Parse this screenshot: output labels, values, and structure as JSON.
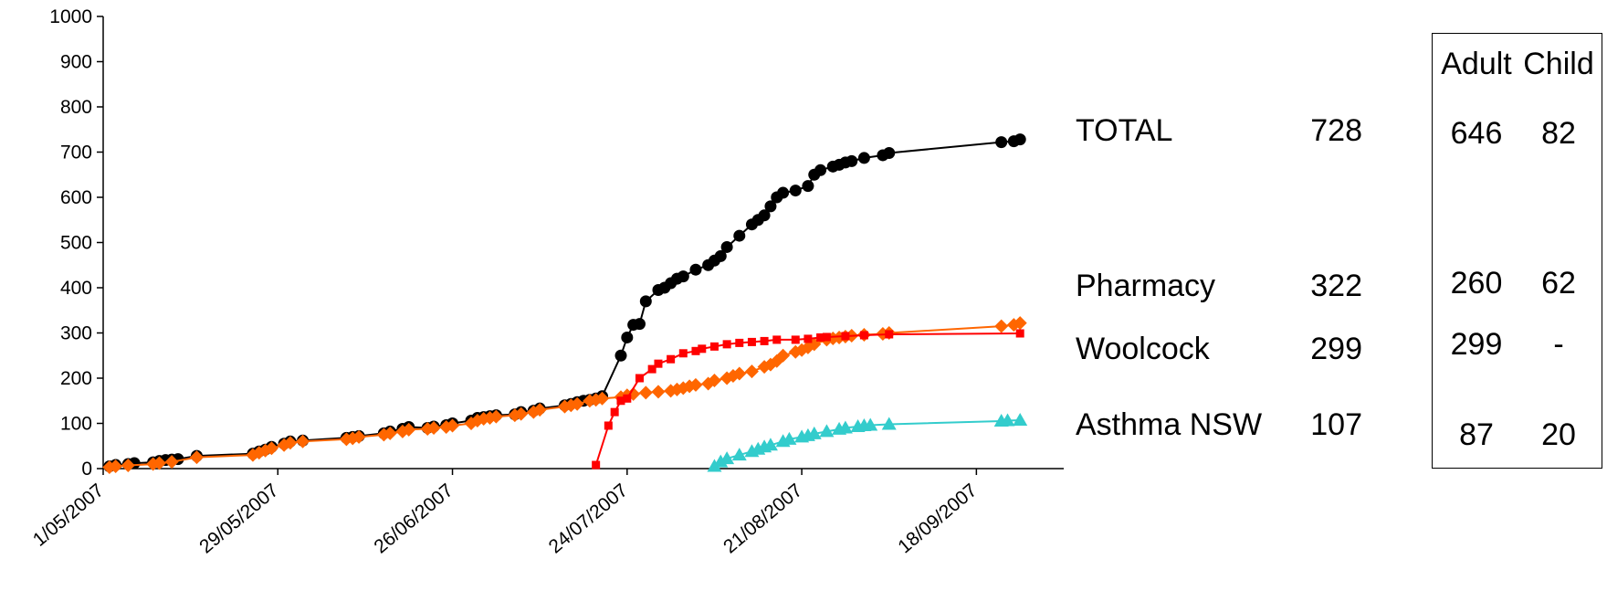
{
  "chart_data": {
    "type": "line",
    "x_type": "date",
    "ylim": [
      0,
      1000
    ],
    "yticks": [
      0,
      100,
      200,
      300,
      400,
      500,
      600,
      700,
      800,
      900,
      1000
    ],
    "xlim": [
      "2007-05-01",
      "2007-10-02"
    ],
    "xticks": [
      {
        "date": "2007-05-01",
        "label": "1/05/2007"
      },
      {
        "date": "2007-05-29",
        "label": "29/05/2007"
      },
      {
        "date": "2007-06-26",
        "label": "26/06/2007"
      },
      {
        "date": "2007-07-24",
        "label": "24/07/2007"
      },
      {
        "date": "2007-08-21",
        "label": "21/08/2007"
      },
      {
        "date": "2007-09-18",
        "label": "18/09/2007"
      }
    ],
    "series": [
      {
        "name": "TOTAL",
        "color": "#000000",
        "marker": "circle",
        "points": [
          [
            "2007-05-02",
            5
          ],
          [
            "2007-05-03",
            8
          ],
          [
            "2007-05-05",
            10
          ],
          [
            "2007-05-06",
            12
          ],
          [
            "2007-05-09",
            14
          ],
          [
            "2007-05-10",
            17
          ],
          [
            "2007-05-11",
            19
          ],
          [
            "2007-05-12",
            20
          ],
          [
            "2007-05-13",
            21
          ],
          [
            "2007-05-16",
            28
          ],
          [
            "2007-05-25",
            33
          ],
          [
            "2007-05-26",
            38
          ],
          [
            "2007-05-27",
            42
          ],
          [
            "2007-05-28",
            48
          ],
          [
            "2007-05-30",
            55
          ],
          [
            "2007-05-31",
            60
          ],
          [
            "2007-06-02",
            62
          ],
          [
            "2007-06-09",
            68
          ],
          [
            "2007-06-10",
            70
          ],
          [
            "2007-06-11",
            72
          ],
          [
            "2007-06-15",
            78
          ],
          [
            "2007-06-16",
            82
          ],
          [
            "2007-06-18",
            88
          ],
          [
            "2007-06-19",
            92
          ],
          [
            "2007-06-22",
            90
          ],
          [
            "2007-06-23",
            93
          ],
          [
            "2007-06-25",
            96
          ],
          [
            "2007-06-26",
            100
          ],
          [
            "2007-06-29",
            106
          ],
          [
            "2007-06-30",
            112
          ],
          [
            "2007-07-01",
            114
          ],
          [
            "2007-07-02",
            116
          ],
          [
            "2007-07-03",
            118
          ],
          [
            "2007-07-06",
            120
          ],
          [
            "2007-07-07",
            125
          ],
          [
            "2007-07-09",
            128
          ],
          [
            "2007-07-10",
            133
          ],
          [
            "2007-07-14",
            140
          ],
          [
            "2007-07-15",
            143
          ],
          [
            "2007-07-16",
            147
          ],
          [
            "2007-07-17",
            150
          ],
          [
            "2007-07-18",
            152
          ],
          [
            "2007-07-19",
            155
          ],
          [
            "2007-07-20",
            160
          ],
          [
            "2007-07-23",
            250
          ],
          [
            "2007-07-24",
            290
          ],
          [
            "2007-07-25",
            318
          ],
          [
            "2007-07-26",
            320
          ],
          [
            "2007-07-27",
            370
          ],
          [
            "2007-07-29",
            395
          ],
          [
            "2007-07-30",
            400
          ],
          [
            "2007-07-31",
            410
          ],
          [
            "2007-08-01",
            420
          ],
          [
            "2007-08-02",
            425
          ],
          [
            "2007-08-04",
            440
          ],
          [
            "2007-08-06",
            450
          ],
          [
            "2007-08-07",
            460
          ],
          [
            "2007-08-08",
            470
          ],
          [
            "2007-08-09",
            490
          ],
          [
            "2007-08-11",
            515
          ],
          [
            "2007-08-13",
            540
          ],
          [
            "2007-08-14",
            550
          ],
          [
            "2007-08-15",
            560
          ],
          [
            "2007-08-16",
            580
          ],
          [
            "2007-08-17",
            600
          ],
          [
            "2007-08-18",
            610
          ],
          [
            "2007-08-20",
            615
          ],
          [
            "2007-08-22",
            625
          ],
          [
            "2007-08-23",
            650
          ],
          [
            "2007-08-24",
            660
          ],
          [
            "2007-08-26",
            668
          ],
          [
            "2007-08-27",
            672
          ],
          [
            "2007-08-28",
            677
          ],
          [
            "2007-08-29",
            680
          ],
          [
            "2007-08-31",
            687
          ],
          [
            "2007-09-03",
            693
          ],
          [
            "2007-09-04",
            698
          ],
          [
            "2007-09-22",
            722
          ],
          [
            "2007-09-24",
            724
          ],
          [
            "2007-09-25",
            728
          ]
        ]
      },
      {
        "name": "Pharmacy",
        "color": "#ff6600",
        "marker": "diamond",
        "points": [
          [
            "2007-05-02",
            3
          ],
          [
            "2007-05-03",
            5
          ],
          [
            "2007-05-05",
            7
          ],
          [
            "2007-05-09",
            10
          ],
          [
            "2007-05-10",
            12
          ],
          [
            "2007-05-12",
            15
          ],
          [
            "2007-05-16",
            25
          ],
          [
            "2007-05-25",
            30
          ],
          [
            "2007-05-26",
            35
          ],
          [
            "2007-05-27",
            40
          ],
          [
            "2007-05-28",
            45
          ],
          [
            "2007-05-30",
            52
          ],
          [
            "2007-05-31",
            57
          ],
          [
            "2007-06-02",
            60
          ],
          [
            "2007-06-09",
            65
          ],
          [
            "2007-06-10",
            67
          ],
          [
            "2007-06-11",
            70
          ],
          [
            "2007-06-15",
            75
          ],
          [
            "2007-06-16",
            78
          ],
          [
            "2007-06-18",
            82
          ],
          [
            "2007-06-19",
            86
          ],
          [
            "2007-06-22",
            88
          ],
          [
            "2007-06-23",
            90
          ],
          [
            "2007-06-25",
            92
          ],
          [
            "2007-06-26",
            95
          ],
          [
            "2007-06-29",
            100
          ],
          [
            "2007-06-30",
            106
          ],
          [
            "2007-07-01",
            110
          ],
          [
            "2007-07-02",
            112
          ],
          [
            "2007-07-03",
            115
          ],
          [
            "2007-07-06",
            118
          ],
          [
            "2007-07-07",
            121
          ],
          [
            "2007-07-09",
            125
          ],
          [
            "2007-07-10",
            130
          ],
          [
            "2007-07-14",
            137
          ],
          [
            "2007-07-15",
            140
          ],
          [
            "2007-07-16",
            143
          ],
          [
            "2007-07-18",
            150
          ],
          [
            "2007-07-19",
            152
          ],
          [
            "2007-07-20",
            155
          ],
          [
            "2007-07-23",
            158
          ],
          [
            "2007-07-24",
            162
          ],
          [
            "2007-07-25",
            165
          ],
          [
            "2007-07-27",
            168
          ],
          [
            "2007-07-29",
            170
          ],
          [
            "2007-07-31",
            172
          ],
          [
            "2007-08-01",
            175
          ],
          [
            "2007-08-02",
            178
          ],
          [
            "2007-08-03",
            182
          ],
          [
            "2007-08-04",
            185
          ],
          [
            "2007-08-06",
            188
          ],
          [
            "2007-08-07",
            195
          ],
          [
            "2007-08-09",
            200
          ],
          [
            "2007-08-10",
            205
          ],
          [
            "2007-08-11",
            210
          ],
          [
            "2007-08-13",
            215
          ],
          [
            "2007-08-15",
            225
          ],
          [
            "2007-08-16",
            230
          ],
          [
            "2007-08-17",
            238
          ],
          [
            "2007-08-18",
            250
          ],
          [
            "2007-08-20",
            258
          ],
          [
            "2007-08-21",
            262
          ],
          [
            "2007-08-22",
            268
          ],
          [
            "2007-08-23",
            275
          ],
          [
            "2007-08-25",
            285
          ],
          [
            "2007-08-26",
            288
          ],
          [
            "2007-08-27",
            290
          ],
          [
            "2007-08-28",
            292
          ],
          [
            "2007-08-29",
            294
          ],
          [
            "2007-08-31",
            296
          ],
          [
            "2007-09-03",
            298
          ],
          [
            "2007-09-04",
            300
          ],
          [
            "2007-09-22",
            315
          ],
          [
            "2007-09-24",
            318
          ],
          [
            "2007-09-25",
            322
          ]
        ]
      },
      {
        "name": "Woolcock",
        "color": "#ff0000",
        "marker": "square",
        "points": [
          [
            "2007-07-19",
            8
          ],
          [
            "2007-07-21",
            95
          ],
          [
            "2007-07-22",
            125
          ],
          [
            "2007-07-23",
            150
          ],
          [
            "2007-07-24",
            155
          ],
          [
            "2007-07-26",
            200
          ],
          [
            "2007-07-28",
            220
          ],
          [
            "2007-07-29",
            232
          ],
          [
            "2007-07-31",
            242
          ],
          [
            "2007-08-02",
            255
          ],
          [
            "2007-08-04",
            260
          ],
          [
            "2007-08-05",
            265
          ],
          [
            "2007-08-07",
            270
          ],
          [
            "2007-08-09",
            275
          ],
          [
            "2007-08-11",
            278
          ],
          [
            "2007-08-13",
            280
          ],
          [
            "2007-08-15",
            282
          ],
          [
            "2007-08-17",
            285
          ],
          [
            "2007-08-20",
            285
          ],
          [
            "2007-08-22",
            287
          ],
          [
            "2007-08-24",
            290
          ],
          [
            "2007-08-25",
            291
          ],
          [
            "2007-08-28",
            293
          ],
          [
            "2007-08-31",
            295
          ],
          [
            "2007-09-04",
            297
          ],
          [
            "2007-09-25",
            299
          ]
        ]
      },
      {
        "name": "Asthma NSW",
        "color": "#33cccc",
        "marker": "triangle",
        "points": [
          [
            "2007-08-07",
            5
          ],
          [
            "2007-08-08",
            15
          ],
          [
            "2007-08-09",
            22
          ],
          [
            "2007-08-11",
            30
          ],
          [
            "2007-08-13",
            38
          ],
          [
            "2007-08-14",
            43
          ],
          [
            "2007-08-15",
            48
          ],
          [
            "2007-08-16",
            52
          ],
          [
            "2007-08-18",
            60
          ],
          [
            "2007-08-19",
            65
          ],
          [
            "2007-08-21",
            70
          ],
          [
            "2007-08-22",
            73
          ],
          [
            "2007-08-23",
            77
          ],
          [
            "2007-08-25",
            82
          ],
          [
            "2007-08-27",
            87
          ],
          [
            "2007-08-28",
            90
          ],
          [
            "2007-08-30",
            93
          ],
          [
            "2007-08-31",
            95
          ],
          [
            "2007-09-01",
            96
          ],
          [
            "2007-09-04",
            98
          ],
          [
            "2007-09-22",
            105
          ],
          [
            "2007-09-23",
            106
          ],
          [
            "2007-09-25",
            107
          ]
        ]
      }
    ]
  },
  "labels": [
    {
      "name": "TOTAL",
      "count": "728",
      "adult": "646",
      "child": "82"
    },
    {
      "name": "Pharmacy",
      "count": "322",
      "adult": "260",
      "child": "62"
    },
    {
      "name": "Woolcock",
      "count": "299",
      "adult": "299",
      "child": "-"
    },
    {
      "name": "Asthma NSW",
      "count": "107",
      "adult": "87",
      "child": "20"
    }
  ],
  "breakdown": {
    "adult_header": "Adult",
    "child_header": "Child"
  }
}
